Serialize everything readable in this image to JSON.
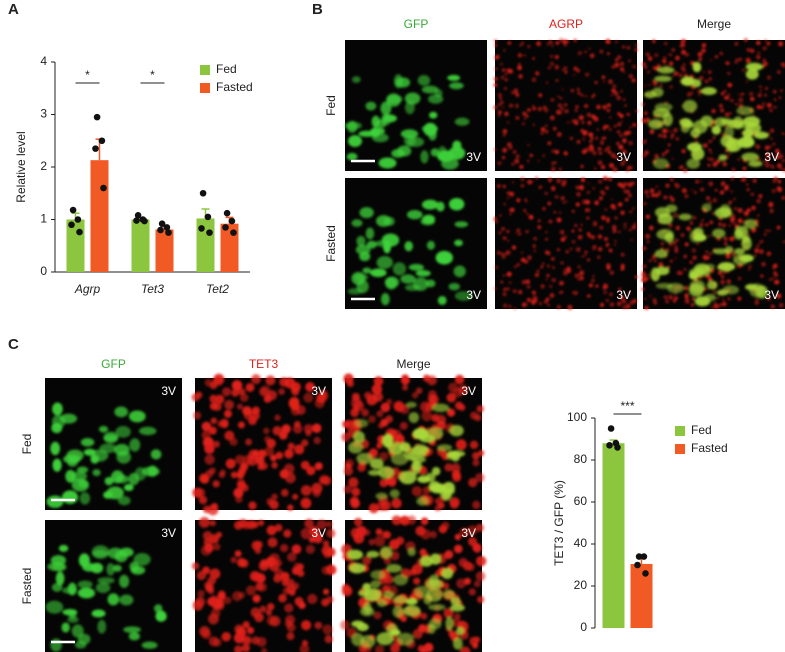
{
  "chart_data": [
    {
      "type": "bar",
      "ylabel": "Relative level",
      "categories": [
        "Agrp",
        "Tet3",
        "Tet2"
      ],
      "series": [
        {
          "name": "Fed",
          "color": "#8cc63f",
          "values": [
            1.0,
            1.0,
            1.02
          ],
          "errors": [
            0.12,
            0.03,
            0.18
          ],
          "points": [
            [
              1.18,
              1.0,
              0.9,
              0.76
            ],
            [
              1.08,
              1.0,
              0.98,
              0.97
            ],
            [
              1.5,
              1.05,
              0.83,
              0.75
            ]
          ]
        },
        {
          "name": "Fasted",
          "color": "#f15a24",
          "values": [
            2.13,
            0.81,
            0.92
          ],
          "errors": [
            0.4,
            0.06,
            0.12
          ],
          "points": [
            [
              2.95,
              2.5,
              2.35,
              1.6
            ],
            [
              0.92,
              0.85,
              0.8,
              0.75
            ],
            [
              1.12,
              0.97,
              0.85,
              0.75
            ]
          ]
        }
      ],
      "ylim": [
        0,
        4
      ],
      "yticks": [
        0,
        1,
        2,
        3,
        4
      ],
      "annotations": [
        "*",
        "*"
      ]
    },
    {
      "type": "bar",
      "ylabel": "TET3 / GFP (%)",
      "series": [
        {
          "name": "Fed",
          "color": "#8cc63f",
          "values": [
            88
          ],
          "errors": [
            1.5
          ],
          "points": [
            [
              95,
              88,
              87,
              86
            ]
          ]
        },
        {
          "name": "Fasted",
          "color": "#f15a24",
          "values": [
            30.5
          ],
          "errors": [
            2.5
          ],
          "points": [
            [
              34,
              34,
              30,
              26
            ]
          ]
        }
      ],
      "ylim": [
        0,
        100
      ],
      "yticks": [
        0,
        20,
        40,
        60,
        80,
        100
      ],
      "annotations": [
        "***"
      ]
    }
  ],
  "panels": {
    "a": {
      "label": "A"
    },
    "b": {
      "label": "B",
      "columns": [
        "GFP",
        "AGRP",
        "Merge"
      ],
      "rows": [
        "Fed",
        "Fasted"
      ],
      "image_label": "3V"
    },
    "c": {
      "label": "C",
      "columns": [
        "GFP",
        "TET3",
        "Merge"
      ],
      "rows": [
        "Fed",
        "Fasted"
      ],
      "image_label": "3V"
    }
  }
}
